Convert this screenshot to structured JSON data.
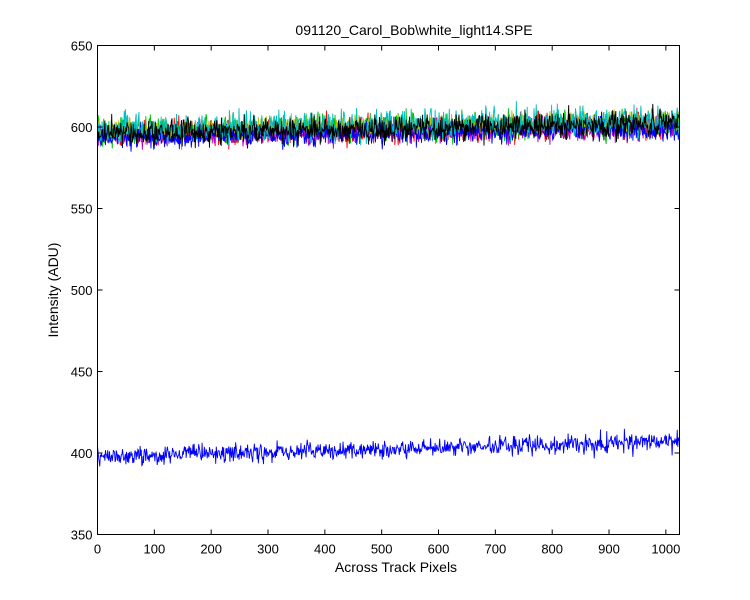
{
  "chart_data": {
    "type": "line",
    "title": "091120_Carol_Bob\\white_light14.SPE",
    "xlabel": "Across Track Pixels",
    "ylabel": "Intensity (ADU)",
    "xlim": [
      0,
      1024
    ],
    "ylim": [
      350,
      650
    ],
    "xticks": [
      0,
      100,
      200,
      300,
      400,
      500,
      600,
      700,
      800,
      900,
      1000
    ],
    "yticks": [
      350,
      400,
      450,
      500,
      550,
      600,
      650
    ],
    "grid": false,
    "legend": "none",
    "series": [
      {
        "color": "#ff0000",
        "x": [
          0,
          256,
          512,
          768,
          1023
        ],
        "y": [
          595,
          597,
          598,
          600,
          601
        ],
        "noise": 7
      },
      {
        "color": "#00bf00",
        "x": [
          0,
          256,
          512,
          768,
          1023
        ],
        "y": [
          597,
          599,
          600,
          601,
          602
        ],
        "noise": 7
      },
      {
        "color": "#bf00bf",
        "x": [
          0,
          256,
          512,
          768,
          1023
        ],
        "y": [
          594,
          596,
          597,
          599,
          600
        ],
        "noise": 6
      },
      {
        "color": "#bfbf00",
        "x": [
          0,
          256,
          512,
          768,
          1023
        ],
        "y": [
          598,
          599,
          600,
          602,
          603
        ],
        "noise": 6
      },
      {
        "color": "#0000ff",
        "x": [
          0,
          256,
          512,
          768,
          1023
        ],
        "y": [
          593,
          595,
          596,
          598,
          598
        ],
        "noise": 6
      },
      {
        "color": "#00bfbf",
        "x": [
          0,
          256,
          512,
          768,
          1023
        ],
        "y": [
          598,
          600,
          601,
          603,
          604
        ],
        "noise": 8
      },
      {
        "color": "#000000",
        "x": [
          0,
          256,
          512,
          768,
          1023
        ],
        "y": [
          596,
          598,
          599,
          601,
          602
        ],
        "noise": 7
      },
      {
        "color": "#0000ff",
        "x": [
          0,
          256,
          512,
          768,
          1023
        ],
        "y": [
          398,
          400,
          402,
          405,
          407
        ],
        "noise": 5
      }
    ]
  }
}
